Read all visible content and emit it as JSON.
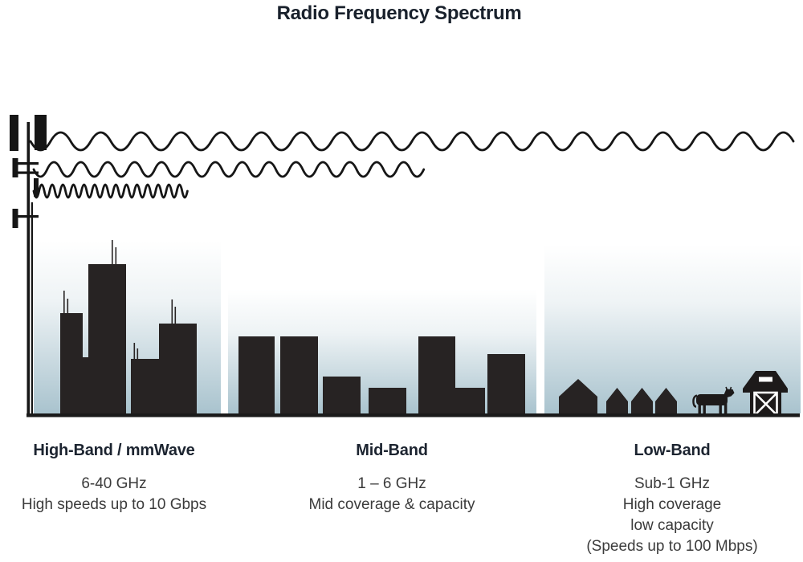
{
  "title": "Radio Frequency Spectrum",
  "bands": [
    {
      "id": "high-band",
      "label": "High-Band / mmWave",
      "lines": [
        "6-40 GHz",
        "High speeds up to 10 Gbps"
      ]
    },
    {
      "id": "mid-band",
      "label": "Mid-Band",
      "lines": [
        "1 – 6 GHz",
        "Mid coverage & capacity"
      ]
    },
    {
      "id": "low-band",
      "label": "Low-Band",
      "lines": [
        "Sub-1 GHz",
        "High coverage",
        "low capacity",
        "(Speeds up to 100 Mbps)"
      ]
    }
  ],
  "icons": {
    "tower": "cell-tower-icon",
    "long_wave": "low-band-wave-icon",
    "medium_wave": "mid-band-wave-icon",
    "short_wave": "high-band-wave-icon",
    "high_band_scene": "city-skyline-icon",
    "mid_band_scene": "midrise-buildings-icon",
    "low_band_scene": "rural-houses-icon",
    "cow": "cow-icon",
    "barn": "barn-icon"
  },
  "colors": {
    "ink": "#19212c",
    "body_text": "#3b3b3b",
    "silhouette": "#272323",
    "sky_bottom": "#a9c3ce",
    "sky_top": "#ffffff"
  }
}
